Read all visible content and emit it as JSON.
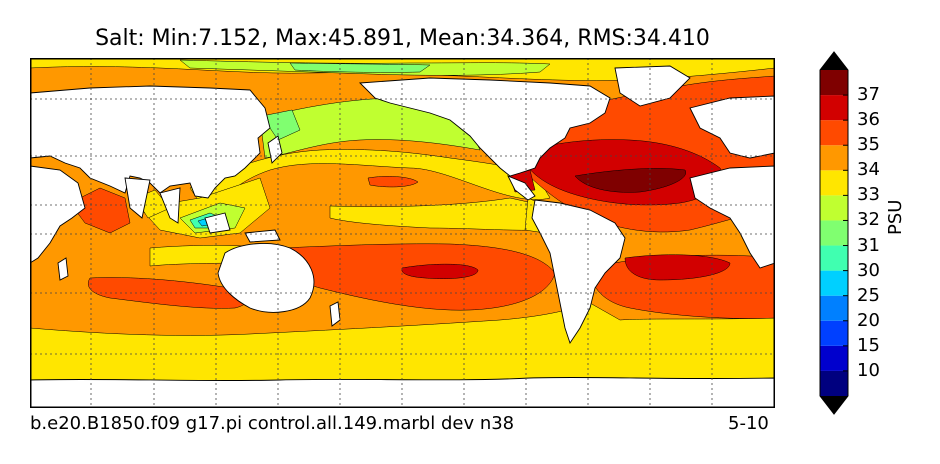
{
  "title": "Salt: Min:7.152, Max:45.891, Mean:34.364, RMS:34.410",
  "footer": {
    "case_name": "b.e20.B1850.f09 g17.pi control.all.149.marbl dev n38",
    "years": "5-10"
  },
  "colorbar": {
    "unit": "PSU",
    "levels": [
      "10",
      "15",
      "20",
      "25",
      "30",
      "31",
      "32",
      "33",
      "34",
      "35",
      "36",
      "37"
    ],
    "colors": [
      "#00007f",
      "#0000cd",
      "#0040ff",
      "#0080ff",
      "#00d0ff",
      "#40ffb0",
      "#80ff70",
      "#c0ff30",
      "#ffe600",
      "#ff9800",
      "#ff4a00",
      "#d20000",
      "#7f0000"
    ]
  },
  "map": {
    "field": "Salt",
    "colors": {
      "land": "#ffffff",
      "ocean_base": "#ff9800",
      "gyre_high": "#ff4a00",
      "core_high": "#d20000",
      "max_core": "#7f0000",
      "band_33": "#ffe600",
      "band_32": "#c0ff30",
      "band_31": "#80ff70",
      "band_30": "#40ffb0",
      "band_25": "#00d0ff",
      "band_20": "#0080ff",
      "band_15": "#0000cd"
    },
    "gridlines": "dotted"
  }
}
